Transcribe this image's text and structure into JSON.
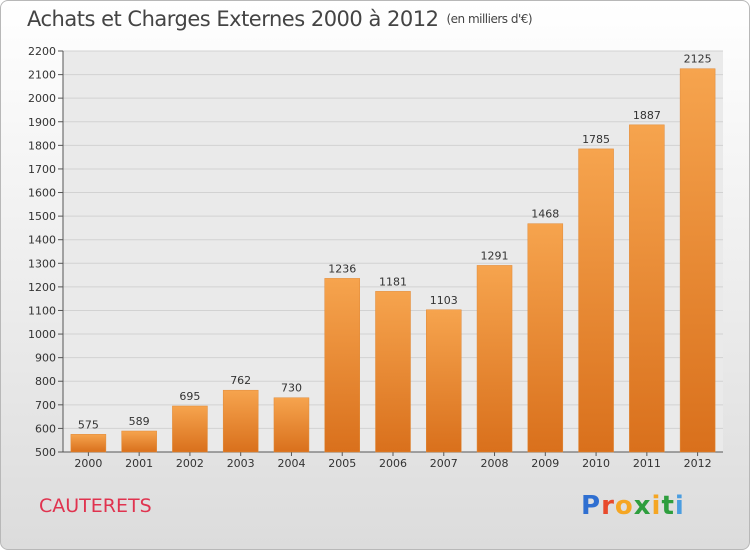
{
  "chart_data": {
    "type": "bar",
    "title": "Achats et Charges Externes 2000 à 2012",
    "unit_note": "(en milliers d'€)",
    "categories": [
      "2000",
      "2001",
      "2002",
      "2003",
      "2004",
      "2005",
      "2006",
      "2007",
      "2008",
      "2009",
      "2010",
      "2011",
      "2012"
    ],
    "values": [
      575,
      589,
      695,
      762,
      730,
      1236,
      1181,
      1103,
      1291,
      1468,
      1785,
      1887,
      2125
    ],
    "ylim": [
      500,
      2200
    ],
    "yticks": [
      500,
      600,
      700,
      800,
      900,
      1000,
      1100,
      1200,
      1300,
      1400,
      1500,
      1600,
      1700,
      1800,
      1900,
      2000,
      2100,
      2200
    ],
    "grid": true,
    "legend": "none",
    "bar_color": "#f0943d"
  },
  "footer": {
    "town": "CAUTERETS",
    "logo_letters": [
      "P",
      "r",
      "o",
      "x",
      "i",
      "t",
      "i"
    ],
    "logo_colors": [
      "#2f6fd1",
      "#e84a2c",
      "#f5a623",
      "#2e9e3e",
      "#f5a623",
      "#2e9e3e",
      "#4a9de0"
    ]
  }
}
